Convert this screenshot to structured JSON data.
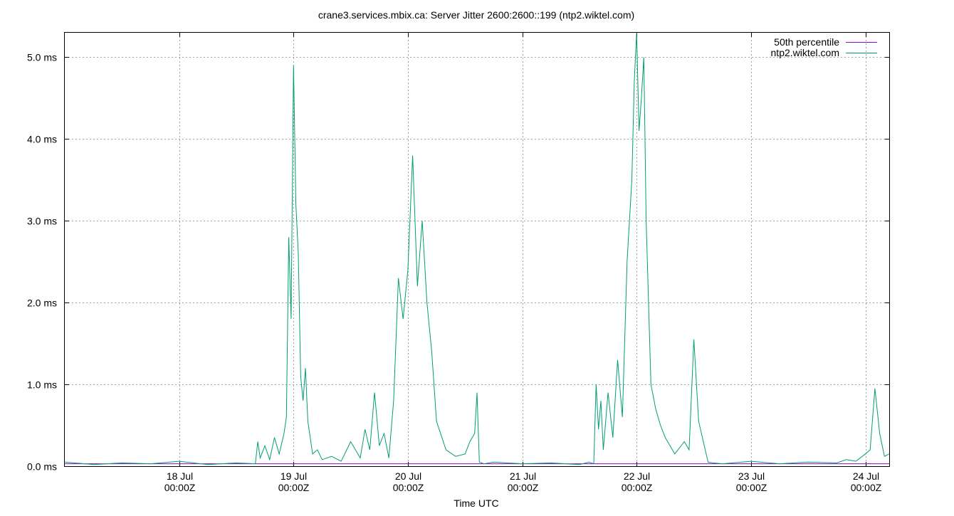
{
  "chart_data": {
    "type": "line",
    "title": "crane3.services.mbix.ca: Server Jitter 2600:2600::199 (ntp2.wiktel.com)",
    "xlabel": "Time UTC",
    "ylabel": "",
    "ylim": [
      0,
      5.3
    ],
    "xlim": [
      "2025-07-17 00:00Z",
      "2025-07-24 05:00Z"
    ],
    "grid": true,
    "legend_position": "top-right",
    "y_ticks": [
      {
        "value": 0,
        "label": "0.0 ms"
      },
      {
        "value": 1,
        "label": "1.0 ms"
      },
      {
        "value": 2,
        "label": "2.0 ms"
      },
      {
        "value": 3,
        "label": "3.0 ms"
      },
      {
        "value": 4,
        "label": "4.0 ms"
      },
      {
        "value": 5,
        "label": "5.0 ms"
      }
    ],
    "x_ticks": [
      {
        "value": "2025-07-18 00:00Z",
        "label1": "18 Jul",
        "label2": "00:00Z"
      },
      {
        "value": "2025-07-19 00:00Z",
        "label1": "19 Jul",
        "label2": "00:00Z"
      },
      {
        "value": "2025-07-20 00:00Z",
        "label1": "20 Jul",
        "label2": "00:00Z"
      },
      {
        "value": "2025-07-21 00:00Z",
        "label1": "21 Jul",
        "label2": "00:00Z"
      },
      {
        "value": "2025-07-22 00:00Z",
        "label1": "22 Jul",
        "label2": "00:00Z"
      },
      {
        "value": "2025-07-23 00:00Z",
        "label1": "23 Jul",
        "label2": "00:00Z"
      },
      {
        "value": "2025-07-24 00:00Z",
        "label1": "24 Jul",
        "label2": "00:00Z"
      }
    ],
    "series": [
      {
        "name": "50th percentile",
        "color": "#9400d3",
        "x": [
          "2025-07-17 00:00Z",
          "2025-07-24 05:00Z"
        ],
        "values": [
          0.03,
          0.03
        ]
      },
      {
        "name": "ntp2.wiktel.com",
        "color": "#009e73",
        "x": [
          "2025-07-17 00:00Z",
          "2025-07-17 06:00Z",
          "2025-07-17 12:00Z",
          "2025-07-17 18:00Z",
          "2025-07-18 00:00Z",
          "2025-07-18 06:00Z",
          "2025-07-18 12:00Z",
          "2025-07-18 16:00Z",
          "2025-07-18 16:30Z",
          "2025-07-18 17:00Z",
          "2025-07-18 18:00Z",
          "2025-07-18 19:00Z",
          "2025-07-18 20:00Z",
          "2025-07-18 21:00Z",
          "2025-07-18 22:00Z",
          "2025-07-18 22:30Z",
          "2025-07-18 23:00Z",
          "2025-07-18 23:30Z",
          "2025-07-19 00:00Z",
          "2025-07-19 00:30Z",
          "2025-07-19 01:00Z",
          "2025-07-19 01:30Z",
          "2025-07-19 02:00Z",
          "2025-07-19 02:30Z",
          "2025-07-19 03:00Z",
          "2025-07-19 04:00Z",
          "2025-07-19 05:00Z",
          "2025-07-19 06:00Z",
          "2025-07-19 08:00Z",
          "2025-07-19 10:00Z",
          "2025-07-19 12:00Z",
          "2025-07-19 14:00Z",
          "2025-07-19 15:00Z",
          "2025-07-19 16:00Z",
          "2025-07-19 17:00Z",
          "2025-07-19 18:00Z",
          "2025-07-19 19:00Z",
          "2025-07-19 20:00Z",
          "2025-07-19 21:00Z",
          "2025-07-19 22:00Z",
          "2025-07-19 23:00Z",
          "2025-07-20 00:00Z",
          "2025-07-20 01:00Z",
          "2025-07-20 02:00Z",
          "2025-07-20 03:00Z",
          "2025-07-20 04:00Z",
          "2025-07-20 05:00Z",
          "2025-07-20 06:00Z",
          "2025-07-20 08:00Z",
          "2025-07-20 10:00Z",
          "2025-07-20 12:00Z",
          "2025-07-20 13:00Z",
          "2025-07-20 14:00Z",
          "2025-07-20 14:30Z",
          "2025-07-20 15:00Z",
          "2025-07-20 16:00Z",
          "2025-07-20 18:00Z",
          "2025-07-21 00:00Z",
          "2025-07-21 06:00Z",
          "2025-07-21 12:00Z",
          "2025-07-21 14:00Z",
          "2025-07-21 15:00Z",
          "2025-07-21 15:30Z",
          "2025-07-21 16:00Z",
          "2025-07-21 16:30Z",
          "2025-07-21 17:00Z",
          "2025-07-21 18:00Z",
          "2025-07-21 19:00Z",
          "2025-07-21 20:00Z",
          "2025-07-21 21:00Z",
          "2025-07-21 22:00Z",
          "2025-07-21 23:00Z",
          "2025-07-21 23:30Z",
          "2025-07-22 00:00Z",
          "2025-07-22 00:30Z",
          "2025-07-22 01:00Z",
          "2025-07-22 01:30Z",
          "2025-07-22 02:00Z",
          "2025-07-22 03:00Z",
          "2025-07-22 04:00Z",
          "2025-07-22 05:00Z",
          "2025-07-22 06:00Z",
          "2025-07-22 07:00Z",
          "2025-07-22 08:00Z",
          "2025-07-22 10:00Z",
          "2025-07-22 11:00Z",
          "2025-07-22 12:00Z",
          "2025-07-22 13:00Z",
          "2025-07-22 14:00Z",
          "2025-07-22 15:00Z",
          "2025-07-22 16:00Z",
          "2025-07-22 18:00Z",
          "2025-07-23 00:00Z",
          "2025-07-23 06:00Z",
          "2025-07-23 12:00Z",
          "2025-07-23 18:00Z",
          "2025-07-23 20:00Z",
          "2025-07-23 22:00Z",
          "2025-07-24 00:00Z",
          "2025-07-24 01:00Z",
          "2025-07-24 02:00Z",
          "2025-07-24 03:00Z",
          "2025-07-24 04:00Z",
          "2025-07-24 05:00Z"
        ],
        "values": [
          0.05,
          0.02,
          0.04,
          0.03,
          0.06,
          0.02,
          0.04,
          0.03,
          0.3,
          0.1,
          0.25,
          0.08,
          0.35,
          0.15,
          0.4,
          0.6,
          2.8,
          1.8,
          4.9,
          3.2,
          2.6,
          1.1,
          0.8,
          1.2,
          0.55,
          0.15,
          0.2,
          0.08,
          0.12,
          0.06,
          0.3,
          0.1,
          0.45,
          0.2,
          0.9,
          0.25,
          0.4,
          0.1,
          0.8,
          2.3,
          1.8,
          2.4,
          3.8,
          2.2,
          3.0,
          2.0,
          1.4,
          0.55,
          0.2,
          0.12,
          0.15,
          0.3,
          0.4,
          0.9,
          0.05,
          0.03,
          0.05,
          0.03,
          0.04,
          0.02,
          0.05,
          0.03,
          1.0,
          0.45,
          0.8,
          0.2,
          0.9,
          0.35,
          1.3,
          0.6,
          2.5,
          3.5,
          4.7,
          5.3,
          4.1,
          4.5,
          5.0,
          3.0,
          1.0,
          0.7,
          0.5,
          0.35,
          0.25,
          0.15,
          0.3,
          0.2,
          1.55,
          0.55,
          0.3,
          0.05,
          0.04,
          0.03,
          0.06,
          0.03,
          0.05,
          0.04,
          0.08,
          0.06,
          0.15,
          0.2,
          0.95,
          0.4,
          0.12,
          0.15
        ]
      }
    ]
  }
}
